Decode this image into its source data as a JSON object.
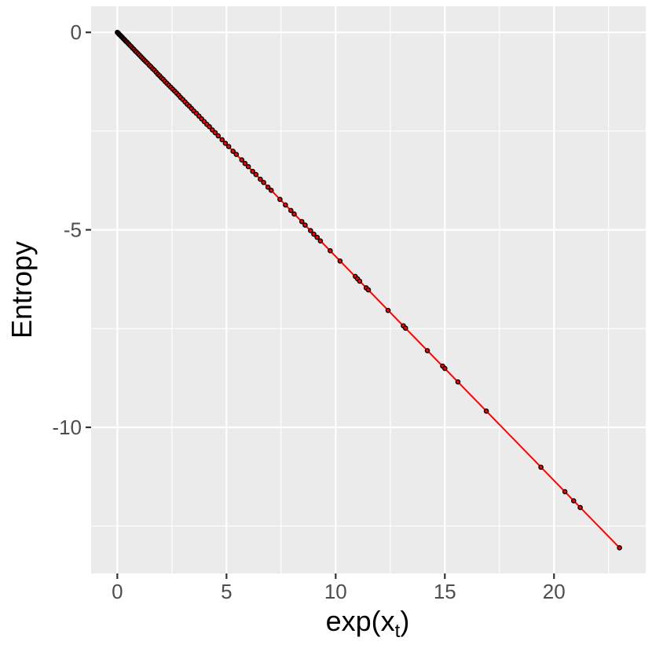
{
  "chart_data": {
    "type": "scatter",
    "title": "",
    "xlabel": {
      "base": "exp(x",
      "sub": "t",
      "close": ")"
    },
    "ylabel": "Entropy",
    "xlim": [
      -1.2,
      24.2
    ],
    "ylim": [
      -13.7,
      0.66
    ],
    "x_ticks": [
      0,
      5,
      10,
      15,
      20
    ],
    "x_tick_labels": [
      "0",
      "5",
      "10",
      "15",
      "20"
    ],
    "x_minor_ticks": [
      2.5,
      7.5,
      12.5,
      17.5,
      22.5
    ],
    "y_ticks": [
      0,
      -5,
      -10
    ],
    "y_tick_labels": [
      "0",
      "-5",
      "-10"
    ],
    "y_minor_ticks": [
      -2.5,
      -7.5,
      -12.5
    ],
    "grid": true,
    "legend": "none",
    "colors": {
      "panel": "#EBEBEB",
      "grid": "#FFFFFF",
      "points": "#000000",
      "fit_line": "#FF0000"
    },
    "fit_line": {
      "x": [
        0,
        23.0
      ],
      "y": [
        0,
        -13.05
      ]
    },
    "points": {
      "x": [
        0.0,
        0.02,
        0.04,
        0.06,
        0.08,
        0.1,
        0.13,
        0.16,
        0.19,
        0.22,
        0.26,
        0.3,
        0.34,
        0.38,
        0.43,
        0.48,
        0.53,
        0.58,
        0.64,
        0.7,
        0.76,
        0.82,
        0.88,
        0.95,
        1.02,
        1.09,
        1.16,
        1.23,
        1.3,
        1.38,
        1.46,
        1.54,
        1.62,
        1.7,
        1.78,
        1.86,
        1.94,
        2.02,
        2.1,
        2.18,
        2.27,
        2.36,
        2.45,
        2.54,
        2.63,
        2.72,
        2.81,
        2.9,
        3.0,
        3.1,
        3.2,
        3.3,
        3.4,
        3.5,
        3.62,
        3.74,
        3.86,
        3.98,
        4.1,
        4.22,
        4.35,
        4.48,
        4.62,
        4.8,
        4.95,
        5.1,
        5.3,
        5.45,
        5.7,
        5.85,
        6.0,
        6.2,
        6.35,
        6.55,
        6.7,
        6.9,
        7.05,
        7.45,
        7.7,
        7.95,
        8.1,
        8.45,
        8.6,
        8.85,
        9.0,
        9.15,
        9.3,
        9.75,
        10.2,
        10.9,
        11.0,
        11.1,
        11.4,
        11.5,
        12.4,
        13.1,
        13.2,
        14.2,
        14.9,
        15.0,
        15.6,
        16.9,
        19.4,
        20.5,
        20.9,
        21.2,
        23.0
      ],
      "y": [
        0.0,
        -0.01,
        -0.02,
        -0.03,
        -0.05,
        -0.06,
        -0.07,
        -0.09,
        -0.11,
        -0.12,
        -0.15,
        -0.17,
        -0.19,
        -0.22,
        -0.24,
        -0.27,
        -0.3,
        -0.33,
        -0.36,
        -0.4,
        -0.43,
        -0.47,
        -0.5,
        -0.54,
        -0.58,
        -0.62,
        -0.66,
        -0.7,
        -0.74,
        -0.78,
        -0.83,
        -0.87,
        -0.92,
        -0.96,
        -1.01,
        -1.06,
        -1.1,
        -1.15,
        -1.19,
        -1.24,
        -1.29,
        -1.34,
        -1.39,
        -1.44,
        -1.49,
        -1.54,
        -1.59,
        -1.65,
        -1.7,
        -1.76,
        -1.82,
        -1.87,
        -1.93,
        -1.99,
        -2.05,
        -2.12,
        -2.19,
        -2.26,
        -2.33,
        -2.39,
        -2.47,
        -2.54,
        -2.62,
        -2.72,
        -2.81,
        -2.89,
        -3.01,
        -3.09,
        -3.23,
        -3.32,
        -3.4,
        -3.52,
        -3.6,
        -3.72,
        -3.8,
        -3.92,
        -4.0,
        -4.23,
        -4.37,
        -4.51,
        -4.6,
        -4.79,
        -4.88,
        -5.02,
        -5.11,
        -5.19,
        -5.28,
        -5.53,
        -5.79,
        -6.18,
        -6.24,
        -6.3,
        -6.47,
        -6.52,
        -7.04,
        -7.43,
        -7.49,
        -8.06,
        -8.45,
        -8.51,
        -8.85,
        -9.59,
        -11.01,
        -11.63,
        -11.86,
        -12.03,
        -13.05
      ]
    }
  }
}
